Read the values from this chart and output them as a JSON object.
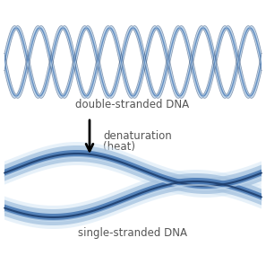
{
  "title_top": "double-stranded DNA",
  "title_bottom": "single-stranded DNA",
  "arrow_label_1": "denaturation",
  "arrow_label_2": "(heat)",
  "text_color": "#555555",
  "strand_dark": "#1e3f6e",
  "strand_mid": "#4a7ab5",
  "strand_light": "#a8c4e0",
  "strand_lighter": "#d0e4f5",
  "background": "#ffffff",
  "fig_width": 2.97,
  "fig_height": 2.94,
  "dpi": 100
}
